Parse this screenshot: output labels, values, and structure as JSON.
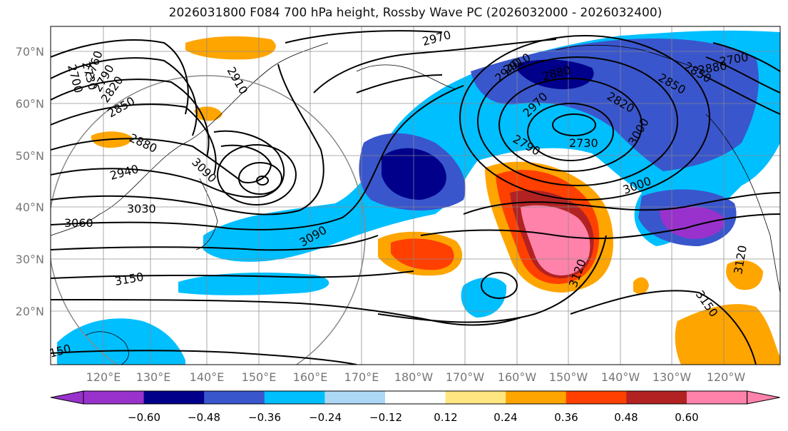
{
  "title": "2026031800 F084 700 hPa height, Rossby Wave PC (2026032000 - 2026032400)",
  "lat_labels": [
    "70°N",
    "60°N",
    "50°N",
    "40°N",
    "30°N",
    "20°N"
  ],
  "lon_labels": [
    "120°E",
    "130°E",
    "140°E",
    "150°E",
    "160°E",
    "170°E",
    "180°W",
    "170°W",
    "160°W",
    "150°W",
    "140°W",
    "130°W",
    "120°W"
  ],
  "contour_labels": [
    "2700",
    "2730",
    "2760",
    "2790",
    "2820",
    "2850",
    "2880",
    "2910",
    "2940",
    "2970",
    "3000",
    "3030",
    "3060",
    "3090",
    "3120",
    "3150",
    "2730",
    "2790",
    "2820",
    "2850",
    "2880",
    "2910",
    "2940",
    "2970",
    "3000",
    "3090",
    "3120",
    "3150",
    "150",
    "2850",
    "2880",
    "2700"
  ],
  "colorbar": {
    "ticks": [
      "−0.60",
      "−0.48",
      "−0.36",
      "−0.24",
      "−0.12",
      "0.12",
      "0.24",
      "0.36",
      "0.48",
      "0.60"
    ],
    "colors": [
      "#9932CC",
      "#00008B",
      "#3A56CC",
      "#00BFFF",
      "#ADD8F5",
      "#FFFFFF",
      "#FFE680",
      "#FFA500",
      "#FF4000",
      "#B22222",
      "#FF82AB"
    ]
  }
}
